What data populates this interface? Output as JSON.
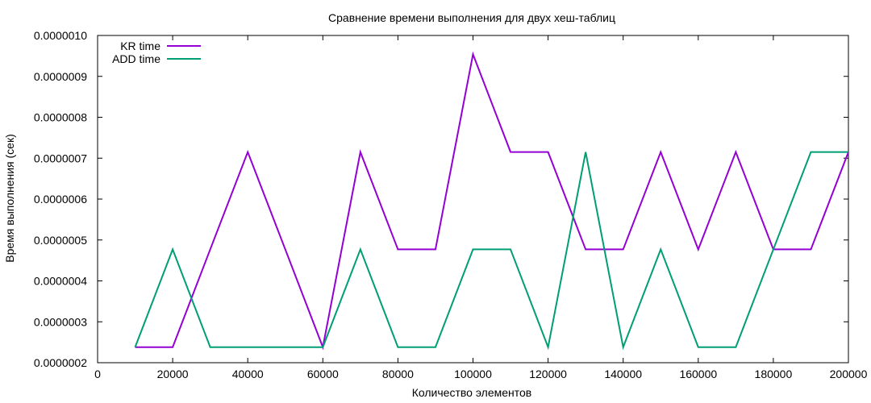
{
  "chart_data": {
    "type": "line",
    "title": "Сравнение времени выполнения для двух хеш-таблиц",
    "xlabel": "Количество элементов",
    "ylabel": "Время выполнения (сек)",
    "xlim": [
      0,
      200000
    ],
    "ylim": [
      2e-07,
      1e-06
    ],
    "x_ticks": [
      0,
      20000,
      40000,
      60000,
      80000,
      100000,
      120000,
      140000,
      160000,
      180000,
      200000
    ],
    "x_tick_labels": [
      "0",
      "20000",
      "40000",
      "60000",
      "80000",
      "100000",
      "120000",
      "140000",
      "160000",
      "180000",
      "200000"
    ],
    "y_ticks": [
      2e-07,
      3e-07,
      4e-07,
      5e-07,
      6e-07,
      7e-07,
      8e-07,
      9e-07,
      1e-06
    ],
    "y_tick_labels": [
      "0.0000002",
      "0.0000003",
      "0.0000004",
      "0.0000005",
      "0.0000006",
      "0.0000007",
      "0.0000008",
      "0.0000009",
      "0.0000010"
    ],
    "grid": false,
    "legend_position": "top-left",
    "x": [
      10000,
      20000,
      30000,
      40000,
      50000,
      60000,
      70000,
      80000,
      90000,
      100000,
      110000,
      120000,
      130000,
      140000,
      150000,
      160000,
      170000,
      180000,
      190000,
      200000
    ],
    "series": [
      {
        "name": "KR time",
        "color": "#9400d3",
        "values": [
          2.38e-07,
          2.38e-07,
          4.77e-07,
          7.15e-07,
          4.77e-07,
          2.38e-07,
          7.15e-07,
          4.77e-07,
          4.77e-07,
          9.54e-07,
          7.15e-07,
          7.15e-07,
          4.77e-07,
          4.77e-07,
          7.15e-07,
          4.77e-07,
          7.15e-07,
          4.77e-07,
          4.77e-07,
          7.15e-07
        ]
      },
      {
        "name": "ADD time",
        "color": "#009e73",
        "values": [
          2.38e-07,
          4.77e-07,
          2.38e-07,
          2.38e-07,
          2.38e-07,
          2.38e-07,
          4.77e-07,
          2.38e-07,
          2.38e-07,
          4.77e-07,
          4.77e-07,
          2.38e-07,
          7.15e-07,
          2.38e-07,
          4.77e-07,
          2.38e-07,
          2.38e-07,
          4.77e-07,
          7.15e-07,
          7.15e-07
        ]
      }
    ]
  }
}
